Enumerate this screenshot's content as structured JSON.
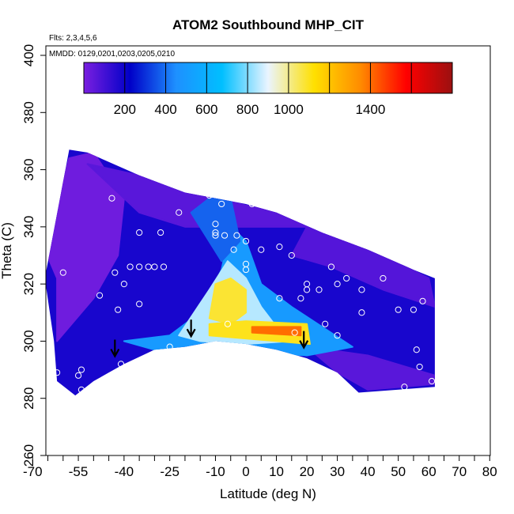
{
  "chart_data": {
    "type": "heatmap",
    "title": "ATOM2 Southbound MHP_CIT",
    "flights_note": "Flts: 2,3,4,5,6",
    "dates_note": "MMDD: 0129,0201,0203,0205,0210",
    "xlabel": "Latitude (deg N)",
    "ylabel": "Theta (C)",
    "xlim": [
      -70,
      80
    ],
    "ylim": [
      260,
      400
    ],
    "x_ticks": [
      -70,
      -55,
      -40,
      -25,
      -10,
      0,
      10,
      20,
      30,
      40,
      50,
      60,
      70,
      80
    ],
    "x_tick_labels": [
      "-70",
      "-55",
      "-40",
      "-25",
      "-10",
      "0",
      "10",
      "20",
      "30",
      "40",
      "50",
      "60",
      "70",
      "80"
    ],
    "x_minor_ticks": [
      -65,
      -60,
      -50,
      -45,
      -35,
      -30,
      -20,
      -15,
      -5,
      5,
      15,
      25,
      35,
      45,
      55,
      65,
      75
    ],
    "y_ticks": [
      260,
      280,
      300,
      320,
      340,
      360,
      380,
      400
    ],
    "y_tick_labels": [
      "260",
      "280",
      "300",
      "320",
      "340",
      "360",
      "380",
      "400"
    ],
    "colorbar": {
      "range": [
        0,
        1800
      ],
      "tick_values": [
        200,
        400,
        600,
        800,
        1000,
        1400
      ],
      "tick_labels": [
        "200",
        "400",
        "600",
        "800",
        "1000",
        "1400"
      ],
      "boundaries": [
        200,
        400,
        600,
        800,
        1000,
        1200,
        1400,
        1600
      ],
      "colors": [
        "#7a1fe0",
        "#0000c8",
        "#1e90ff",
        "#00bfff",
        "#eaf4ff",
        "#ffe000",
        "#ff8c00",
        "#ff0000",
        "#9b1010"
      ]
    },
    "grid": false,
    "lower_boundary": [
      [
        -56,
        281
      ],
      [
        -50,
        286
      ],
      [
        -45,
        289
      ],
      [
        -40,
        292
      ],
      [
        -30,
        297
      ],
      [
        -20,
        298
      ],
      [
        -10,
        300
      ],
      [
        0,
        299
      ],
      [
        10,
        297
      ],
      [
        20,
        294
      ],
      [
        30,
        289
      ],
      [
        37,
        282
      ]
    ],
    "field_regions": [
      {
        "name": "background",
        "level": 180
      },
      {
        "name": "upper-left",
        "level": 20,
        "polygon": [
          [
            -58,
            364
          ],
          [
            -50,
            366
          ],
          [
            -40,
            350
          ],
          [
            -42,
            330
          ],
          [
            -50,
            315
          ],
          [
            -62,
            300
          ],
          [
            -62,
            322
          ],
          [
            -66,
            332
          ]
        ]
      },
      {
        "name": "top-band",
        "level": 60,
        "polygon": [
          [
            -52,
            362
          ],
          [
            -35,
            358
          ],
          [
            -10,
            350
          ],
          [
            10,
            345
          ],
          [
            20,
            340
          ],
          [
            0,
            340
          ],
          [
            -20,
            340
          ],
          [
            -35,
            345
          ],
          [
            -45,
            355
          ]
        ]
      },
      {
        "name": "upper-right",
        "level": 70,
        "polygon": [
          [
            20,
            340
          ],
          [
            45,
            330
          ],
          [
            60,
            322
          ],
          [
            62,
            312
          ],
          [
            45,
            318
          ],
          [
            28,
            326
          ],
          [
            15,
            330
          ]
        ]
      },
      {
        "name": "lower-right",
        "level": 60,
        "polygon": [
          [
            20,
            298
          ],
          [
            40,
            295
          ],
          [
            62,
            288
          ],
          [
            62,
            285
          ],
          [
            40,
            283
          ],
          [
            30,
            289
          ]
        ]
      },
      {
        "name": "outer-plume",
        "level": 500,
        "polygon": [
          [
            -40,
            300
          ],
          [
            -25,
            302
          ],
          [
            -15,
            310
          ],
          [
            -8,
            325
          ],
          [
            -5,
            340
          ],
          [
            0,
            335
          ],
          [
            5,
            320
          ],
          [
            15,
            312
          ],
          [
            25,
            305
          ],
          [
            35,
            298
          ],
          [
            20,
            295
          ],
          [
            5,
            296
          ],
          [
            -10,
            298
          ],
          [
            -30,
            297
          ]
        ]
      },
      {
        "name": "upper-stem",
        "level": 380,
        "polygon": [
          [
            -18,
            345
          ],
          [
            -12,
            350
          ],
          [
            -5,
            350
          ],
          [
            -2,
            335
          ],
          [
            -8,
            328
          ]
        ]
      },
      {
        "name": "inner-plume",
        "level": 850,
        "polygon": [
          [
            -22,
            302
          ],
          [
            -12,
            318
          ],
          [
            -6,
            328
          ],
          [
            0,
            322
          ],
          [
            5,
            312
          ],
          [
            10,
            305
          ],
          [
            15,
            300
          ],
          [
            0,
            299
          ],
          [
            -15,
            300
          ]
        ]
      },
      {
        "name": "yellow-core",
        "level": 1080,
        "polygon": [
          [
            -10,
            320
          ],
          [
            -5,
            322
          ],
          [
            0,
            318
          ],
          [
            0,
            310
          ],
          [
            -5,
            306
          ],
          [
            -12,
            308
          ]
        ]
      },
      {
        "name": "yellow-band",
        "level": 1100,
        "polygon": [
          [
            -12,
            306
          ],
          [
            0,
            307
          ],
          [
            20,
            306
          ],
          [
            21,
            299
          ],
          [
            10,
            300
          ],
          [
            -12,
            302
          ]
        ]
      },
      {
        "name": "orange-core",
        "level": 1400,
        "polygon": [
          [
            2,
            305
          ],
          [
            18,
            305
          ],
          [
            18,
            302
          ],
          [
            2,
            303
          ]
        ]
      }
    ],
    "sample_points": [
      [
        -55,
        288
      ],
      [
        -54,
        290
      ],
      [
        -54,
        283
      ],
      [
        -48,
        316
      ],
      [
        -44,
        350
      ],
      [
        -43,
        324
      ],
      [
        -42,
        311
      ],
      [
        -41,
        292
      ],
      [
        -40,
        320
      ],
      [
        -38,
        326
      ],
      [
        -35,
        338
      ],
      [
        -35,
        326
      ],
      [
        -35,
        313
      ],
      [
        -32,
        326
      ],
      [
        -30,
        326
      ],
      [
        -28,
        338
      ],
      [
        -27,
        326
      ],
      [
        -25,
        298
      ],
      [
        -22,
        345
      ],
      [
        -12,
        351
      ],
      [
        -10,
        341
      ],
      [
        -10,
        338
      ],
      [
        -10,
        337
      ],
      [
        -8,
        348
      ],
      [
        -7,
        337
      ],
      [
        -6,
        306
      ],
      [
        -4,
        332
      ],
      [
        -3,
        337
      ],
      [
        0,
        335
      ],
      [
        0,
        325
      ],
      [
        0,
        327
      ],
      [
        2,
        348
      ],
      [
        3,
        349
      ],
      [
        5,
        332
      ],
      [
        10,
        348
      ],
      [
        11,
        333
      ],
      [
        11,
        315
      ],
      [
        15,
        330
      ],
      [
        16,
        303
      ],
      [
        18,
        315
      ],
      [
        20,
        320
      ],
      [
        20,
        318
      ],
      [
        24,
        318
      ],
      [
        26,
        306
      ],
      [
        28,
        326
      ],
      [
        30,
        302
      ],
      [
        30,
        320
      ],
      [
        33,
        322
      ],
      [
        38,
        310
      ],
      [
        38,
        318
      ],
      [
        40,
        281
      ],
      [
        45,
        322
      ],
      [
        50,
        311
      ],
      [
        52,
        284
      ],
      [
        55,
        311
      ],
      [
        56,
        297
      ],
      [
        57,
        291
      ],
      [
        58,
        314
      ],
      [
        61,
        286
      ],
      [
        -62,
        289
      ],
      [
        -60,
        324
      ]
    ],
    "arrows": [
      [
        -43,
        295
      ],
      [
        -18,
        302
      ],
      [
        19,
        298
      ]
    ]
  }
}
